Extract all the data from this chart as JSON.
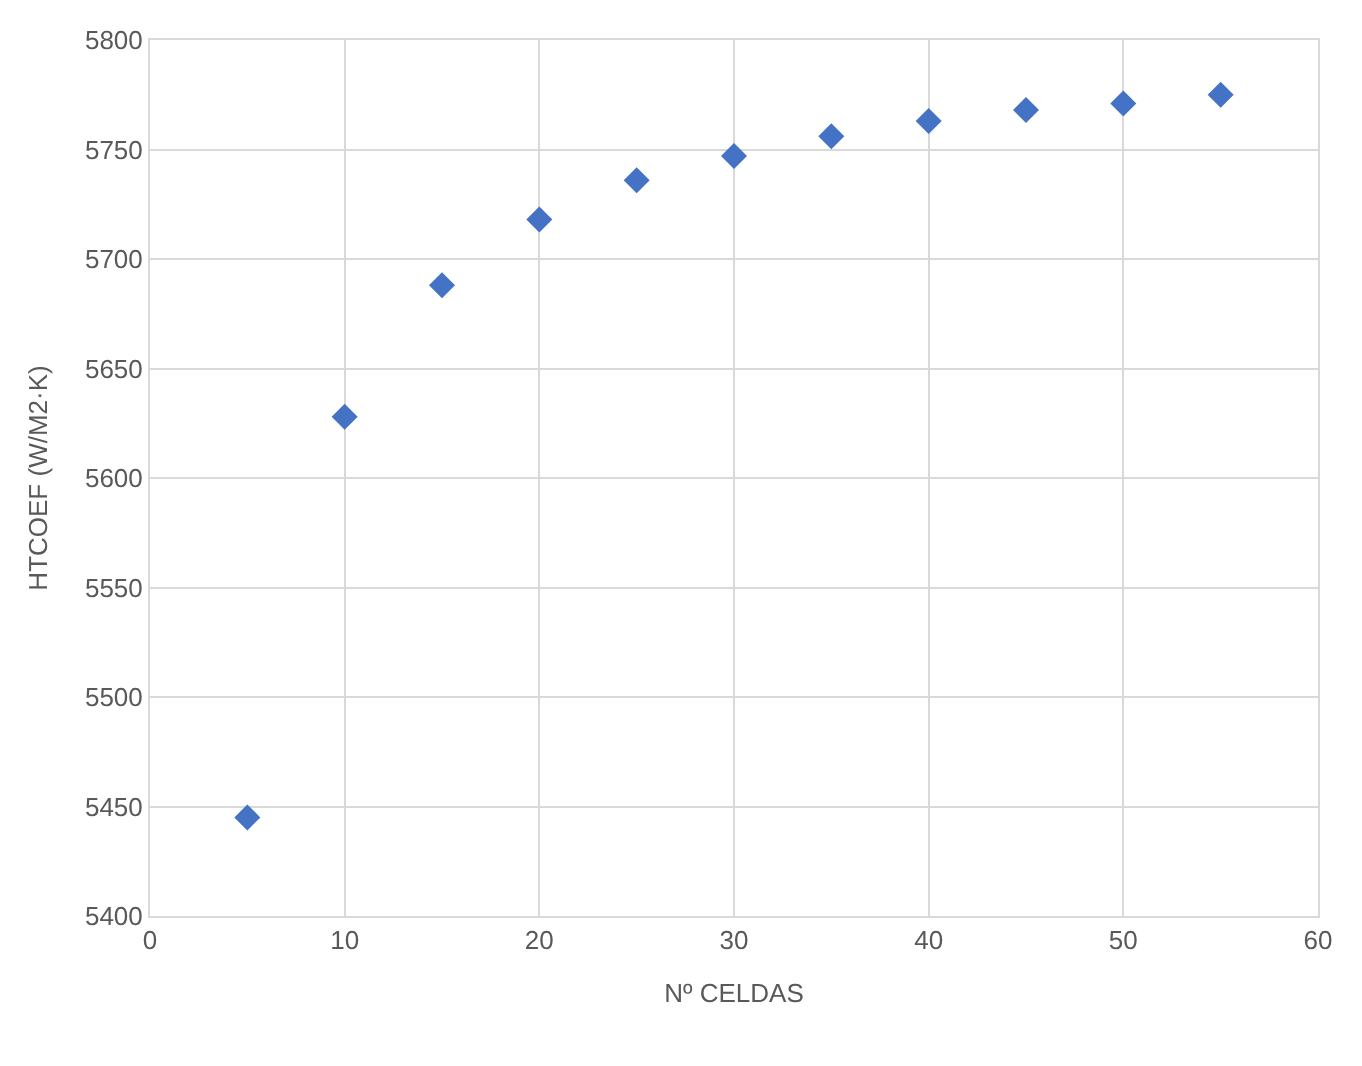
{
  "chart_data": {
    "type": "scatter",
    "xlabel": "Nº CELDAS",
    "ylabel": "HTCOEF (W/M2·K)",
    "x": [
      5,
      10,
      15,
      20,
      25,
      30,
      35,
      40,
      45,
      50,
      55
    ],
    "series": [
      {
        "color": "#4472c4",
        "values": [
          5445,
          5628,
          5688,
          5718,
          5736,
          5747,
          5756,
          5763,
          5768,
          5771,
          5775
        ]
      }
    ],
    "xlim": [
      0,
      60
    ],
    "xticks": [
      0,
      10,
      20,
      30,
      40,
      50,
      60
    ],
    "ylim": [
      5400,
      5800
    ],
    "yticks": [
      5400,
      5450,
      5500,
      5550,
      5600,
      5650,
      5700,
      5750,
      5800
    ],
    "grid": true,
    "marker": "diamond"
  }
}
